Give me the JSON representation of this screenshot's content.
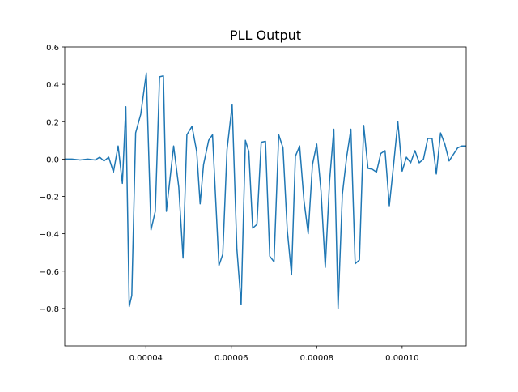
{
  "chart_data": {
    "type": "line",
    "title": "PLL Output",
    "xlabel": "",
    "ylabel": "",
    "xlim": [
      2.1e-05,
      0.000115
    ],
    "ylim": [
      -1.0,
      0.6
    ],
    "x_ticks": [
      4e-05,
      6e-05,
      8e-05,
      0.0001
    ],
    "x_tick_labels": [
      "0.00004",
      "0.00006",
      "0.00008",
      "0.00010"
    ],
    "y_ticks": [
      -0.8,
      -0.6,
      -0.4,
      -0.2,
      0.0,
      0.2,
      0.4,
      0.6
    ],
    "y_tick_labels": [
      "−0.8",
      "−0.6",
      "−0.4",
      "−0.2",
      "0.0",
      "0.2",
      "0.4",
      "0.6"
    ],
    "grid": false,
    "legend": "none",
    "colors": {
      "line": "#1f77b4",
      "axes": "#000000",
      "background": "#ffffff"
    },
    "series": [
      {
        "x": [
          2.1e-05,
          2.27e-05,
          2.46e-05,
          2.64e-05,
          2.81e-05,
          2.92e-05,
          3.02e-05,
          3.13e-05,
          3.24e-05,
          3.35e-05,
          3.45e-05,
          3.53e-05,
          3.61e-05,
          3.67e-05,
          3.76e-05,
          3.88e-05,
          4.01e-05,
          4.12e-05,
          4.22e-05,
          4.26e-05,
          4.32e-05,
          4.41e-05,
          4.48e-05,
          4.65e-05,
          4.77e-05,
          4.87e-05,
          4.96e-05,
          5.08e-05,
          5.19e-05,
          5.27e-05,
          5.35e-05,
          5.47e-05,
          5.56e-05,
          5.71e-05,
          5.8e-05,
          5.9e-05,
          6.02e-05,
          6.13e-05,
          6.23e-05,
          6.33e-05,
          6.41e-05,
          6.5e-05,
          6.6e-05,
          6.7e-05,
          6.8e-05,
          6.9e-05,
          7e-05,
          7.11e-05,
          7.21e-05,
          7.31e-05,
          7.41e-05,
          7.5e-05,
          7.6e-05,
          7.7e-05,
          7.8e-05,
          7.9e-05,
          8e-05,
          8.1e-05,
          8.2e-05,
          8.3e-05,
          8.4e-05,
          8.5e-05,
          8.6e-05,
          8.7e-05,
          8.8e-05,
          8.9e-05,
          9e-05,
          9.1e-05,
          9.2e-05,
          9.3e-05,
          9.4e-05,
          9.5e-05,
          9.6e-05,
          9.7e-05,
          9.8e-05,
          9.9e-05,
          0.0001,
          0.000101,
          0.000102,
          0.000103,
          0.000104,
          0.000105,
          0.000106,
          0.000107,
          0.000108,
          0.000109,
          0.00011,
          0.000111,
          0.000112,
          0.000113,
          0.000114,
          0.000115
        ],
        "y": [
          0.0,
          0.0,
          -0.005,
          0.0,
          -0.005,
          0.01,
          -0.01,
          0.01,
          -0.07,
          0.07,
          -0.13,
          0.28,
          -0.79,
          -0.73,
          0.14,
          0.24,
          0.46,
          -0.38,
          -0.28,
          0.0,
          0.44,
          0.445,
          -0.28,
          0.07,
          -0.15,
          -0.53,
          0.13,
          0.175,
          0.04,
          -0.24,
          -0.03,
          0.1,
          0.13,
          -0.57,
          -0.51,
          0.05,
          0.29,
          -0.48,
          -0.78,
          0.1,
          0.04,
          -0.37,
          -0.35,
          0.09,
          0.095,
          -0.52,
          -0.55,
          0.13,
          0.06,
          -0.38,
          -0.62,
          0.015,
          0.07,
          -0.22,
          -0.4,
          -0.03,
          0.08,
          -0.17,
          -0.58,
          -0.12,
          0.16,
          -0.8,
          -0.19,
          0.01,
          0.16,
          -0.56,
          -0.54,
          0.18,
          -0.05,
          -0.055,
          -0.07,
          0.03,
          0.045,
          -0.25,
          -0.03,
          0.2,
          -0.065,
          0.01,
          -0.02,
          0.045,
          -0.02,
          0.0,
          0.11,
          0.11,
          -0.08,
          0.14,
          0.08,
          -0.01,
          0.025,
          0.06,
          0.07,
          0.07
        ]
      }
    ]
  }
}
